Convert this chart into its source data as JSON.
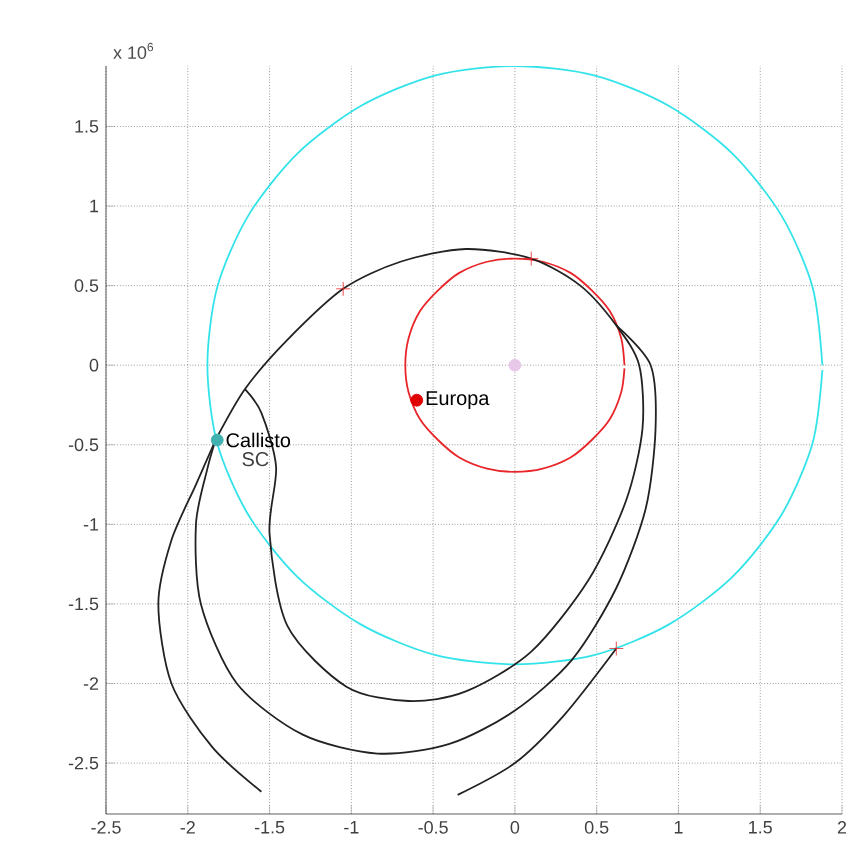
{
  "chart_data": {
    "type": "line",
    "xlim": [
      -2.5,
      2
    ],
    "ylim": [
      -2.82,
      1.88
    ],
    "xticks": [
      -2.5,
      -2,
      -1.5,
      -1,
      -0.5,
      0,
      0.5,
      1,
      1.5,
      2
    ],
    "yticks": [
      -2.5,
      -2,
      -1.5,
      -1,
      -0.5,
      0,
      0.5,
      1,
      1.5
    ],
    "grid": true,
    "annotations": [
      "x 10$^{6}$",
      "SC"
    ],
    "series": [
      {
        "type": "line",
        "color": "#33e3ea",
        "marker": "none",
        "x": [
          1.88,
          1.82,
          1.63,
          1.33,
          0.94,
          0.49,
          0,
          -0.49,
          -0.94,
          -1.33,
          -1.63,
          -1.82,
          -1.88,
          -1.82,
          -1.63,
          -1.33,
          -0.94,
          -0.49,
          0,
          0.49,
          0.94,
          1.33,
          1.63,
          1.82,
          1.88
        ],
        "values": [
          0,
          0.49,
          0.94,
          1.33,
          1.63,
          1.82,
          1.88,
          1.82,
          1.63,
          1.33,
          0.94,
          0.49,
          0,
          -0.49,
          -0.94,
          -1.33,
          -1.63,
          -1.82,
          -1.88,
          -1.82,
          -1.63,
          -1.33,
          -0.94,
          -0.49,
          -0.03
        ]
      },
      {
        "type": "line",
        "color": "#e8262a",
        "marker": "none",
        "x": [
          0.67,
          0.65,
          0.58,
          0.47,
          0.34,
          0.17,
          0,
          -0.17,
          -0.34,
          -0.47,
          -0.58,
          -0.65,
          -0.67,
          -0.65,
          -0.58,
          -0.47,
          -0.34,
          -0.17,
          0,
          0.17,
          0.34,
          0.47,
          0.58,
          0.65,
          0.67
        ],
        "values": [
          0,
          0.17,
          0.34,
          0.47,
          0.58,
          0.65,
          0.67,
          0.65,
          0.58,
          0.47,
          0.34,
          0.17,
          0,
          -0.17,
          -0.34,
          -0.47,
          -0.58,
          -0.65,
          -0.67,
          -0.65,
          -0.58,
          -0.47,
          -0.34,
          -0.17,
          -0.02
        ]
      },
      {
        "type": "line",
        "color": "#222222",
        "marker": "none",
        "x": [
          -1.83,
          -1.65,
          -1.4,
          -1.05,
          -0.7,
          -0.3,
          0.1,
          0.4,
          0.62,
          0.76,
          0.78,
          0.68,
          0.45,
          0.1,
          -0.3,
          -0.65,
          -1.03,
          -1.39,
          -1.5,
          -1.46,
          -1.55,
          -1.65
        ],
        "values": [
          -0.47,
          -0.15,
          0.15,
          0.48,
          0.65,
          0.73,
          0.67,
          0.5,
          0.25,
          0,
          -0.4,
          -0.85,
          -1.35,
          -1.8,
          -2.05,
          -2.11,
          -2.02,
          -1.64,
          -1.06,
          -0.64,
          -0.3,
          -0.15
        ]
      },
      {
        "type": "line",
        "color": "#222222",
        "marker": "none",
        "x": [
          0.62,
          0.83,
          0.86,
          0.8,
          0.62,
          0.35,
          0,
          -0.4,
          -0.84,
          -1.3,
          -1.7,
          -1.92,
          -1.95,
          -1.88,
          -1.83
        ],
        "values": [
          0.25,
          0,
          -0.4,
          -0.9,
          -1.4,
          -1.85,
          -2.17,
          -2.38,
          -2.44,
          -2.32,
          -2.0,
          -1.5,
          -1.0,
          -0.65,
          -0.47
        ]
      },
      {
        "type": "line",
        "color": "#222222",
        "marker": "none",
        "x": [
          -1.83,
          -1.95,
          -2.1,
          -2.18,
          -2.1,
          -1.85,
          -1.55,
          null,
          -0.35,
          0,
          0.3,
          0.62
        ],
        "values": [
          -0.47,
          -0.75,
          -1.1,
          -1.5,
          -2.0,
          -2.4,
          -2.68,
          null,
          -2.7,
          -2.5,
          -2.2,
          -1.78
        ]
      },
      {
        "type": "scatter",
        "color": "#e8262a",
        "marker": "cross",
        "x": [
          -1.05,
          0.1,
          0.62
        ],
        "values": [
          0.48,
          0.67,
          -1.78
        ]
      },
      {
        "type": "scatter",
        "color": "#e8c8e8",
        "marker": "circle",
        "x": [
          0
        ],
        "values": [
          0
        ]
      },
      {
        "type": "scatter",
        "name": "Europa",
        "color": "#e00000",
        "marker": "circle",
        "x": [
          -0.6
        ],
        "values": [
          -0.22
        ]
      },
      {
        "type": "scatter",
        "name": "Callisto",
        "color": "#40b0b0",
        "marker": "circle",
        "x": [
          -1.82
        ],
        "values": [
          -0.47
        ]
      }
    ]
  }
}
